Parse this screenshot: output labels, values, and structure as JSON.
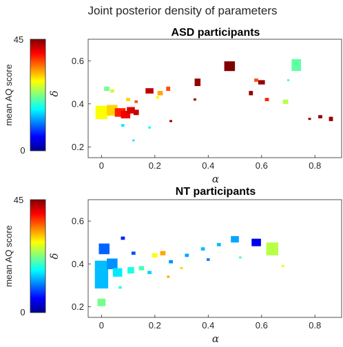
{
  "suptitle": "Joint posterior density of parameters",
  "chart_data": [
    {
      "type": "scatter",
      "title": "ASD participants",
      "xlabel": "α",
      "ylabel": "δ",
      "xlim": [
        -0.05,
        0.9
      ],
      "ylim": [
        0.15,
        0.7
      ],
      "xticks": [
        "0",
        "0.2",
        "0.4",
        "0.6",
        "0.8"
      ],
      "yticks": [
        "0.2",
        "0.4",
        "0.6"
      ],
      "colorbar": {
        "label": "mean AQ score",
        "min": "0",
        "max": "45",
        "colormap": "jet"
      },
      "points": [
        {
          "x": 0.0,
          "y": 0.36,
          "aq": 28,
          "w": 0.045,
          "h": 0.062
        },
        {
          "x": 0.04,
          "y": 0.37,
          "aq": 30,
          "w": 0.04,
          "h": 0.05
        },
        {
          "x": 0.07,
          "y": 0.36,
          "aq": 38,
          "w": 0.04,
          "h": 0.04
        },
        {
          "x": 0.09,
          "y": 0.35,
          "aq": 40,
          "w": 0.035,
          "h": 0.035
        },
        {
          "x": 0.11,
          "y": 0.37,
          "aq": 41,
          "w": 0.03,
          "h": 0.03
        },
        {
          "x": 0.13,
          "y": 0.36,
          "aq": 42,
          "w": 0.02,
          "h": 0.025
        },
        {
          "x": 0.02,
          "y": 0.47,
          "aq": 22,
          "w": 0.02,
          "h": 0.02
        },
        {
          "x": 0.04,
          "y": 0.46,
          "aq": 26,
          "w": 0.015,
          "h": 0.015
        },
        {
          "x": 0.1,
          "y": 0.42,
          "aq": 30,
          "w": 0.015,
          "h": 0.015
        },
        {
          "x": 0.13,
          "y": 0.41,
          "aq": 36,
          "w": 0.012,
          "h": 0.012
        },
        {
          "x": 0.18,
          "y": 0.46,
          "aq": 42,
          "w": 0.03,
          "h": 0.025
        },
        {
          "x": 0.22,
          "y": 0.45,
          "aq": 32,
          "w": 0.02,
          "h": 0.02
        },
        {
          "x": 0.25,
          "y": 0.47,
          "aq": 36,
          "w": 0.015,
          "h": 0.02
        },
        {
          "x": 0.21,
          "y": 0.43,
          "aq": 28,
          "w": 0.012,
          "h": 0.012
        },
        {
          "x": 0.36,
          "y": 0.5,
          "aq": 44,
          "w": 0.022,
          "h": 0.035
        },
        {
          "x": 0.48,
          "y": 0.575,
          "aq": 45,
          "w": 0.04,
          "h": 0.045
        },
        {
          "x": 0.6,
          "y": 0.5,
          "aq": 44,
          "w": 0.025,
          "h": 0.02
        },
        {
          "x": 0.58,
          "y": 0.51,
          "aq": 36,
          "w": 0.015,
          "h": 0.015
        },
        {
          "x": 0.56,
          "y": 0.45,
          "aq": 44,
          "w": 0.015,
          "h": 0.02
        },
        {
          "x": 0.62,
          "y": 0.42,
          "aq": 38,
          "w": 0.015,
          "h": 0.015
        },
        {
          "x": 0.69,
          "y": 0.41,
          "aq": 25,
          "w": 0.02,
          "h": 0.02
        },
        {
          "x": 0.73,
          "y": 0.58,
          "aq": 21,
          "w": 0.035,
          "h": 0.055
        },
        {
          "x": 0.82,
          "y": 0.34,
          "aq": 44,
          "w": 0.015,
          "h": 0.015
        },
        {
          "x": 0.86,
          "y": 0.33,
          "aq": 44,
          "w": 0.015,
          "h": 0.02
        },
        {
          "x": 0.78,
          "y": 0.33,
          "aq": 44,
          "w": 0.01,
          "h": 0.01
        },
        {
          "x": 0.26,
          "y": 0.32,
          "aq": 43,
          "w": 0.01,
          "h": 0.01
        },
        {
          "x": 0.18,
          "y": 0.29,
          "aq": 17,
          "w": 0.01,
          "h": 0.01
        },
        {
          "x": 0.08,
          "y": 0.3,
          "aq": 16,
          "w": 0.012,
          "h": 0.012
        },
        {
          "x": 0.12,
          "y": 0.23,
          "aq": 15,
          "w": 0.008,
          "h": 0.008
        },
        {
          "x": 0.35,
          "y": 0.42,
          "aq": 44,
          "w": 0.01,
          "h": 0.01
        },
        {
          "x": 0.7,
          "y": 0.51,
          "aq": 18,
          "w": 0.008,
          "h": 0.008
        }
      ]
    },
    {
      "type": "scatter",
      "title": "NT participants",
      "xlabel": "α",
      "ylabel": "δ",
      "xlim": [
        -0.05,
        0.9
      ],
      "ylim": [
        0.15,
        0.7
      ],
      "xticks": [
        "0",
        "0.2",
        "0.4",
        "0.6",
        "0.8"
      ],
      "yticks": [
        "0.2",
        "0.4",
        "0.6"
      ],
      "colorbar": {
        "label": "mean AQ score",
        "min": "0",
        "max": "45",
        "colormap": "jet"
      },
      "points": [
        {
          "x": 0.0,
          "y": 0.35,
          "aq": 14,
          "w": 0.05,
          "h": 0.13
        },
        {
          "x": 0.01,
          "y": 0.47,
          "aq": 10,
          "w": 0.04,
          "h": 0.05
        },
        {
          "x": 0.04,
          "y": 0.4,
          "aq": 12,
          "w": 0.04,
          "h": 0.05
        },
        {
          "x": 0.06,
          "y": 0.36,
          "aq": 16,
          "w": 0.035,
          "h": 0.04
        },
        {
          "x": 0.0,
          "y": 0.22,
          "aq": 22,
          "w": 0.03,
          "h": 0.035
        },
        {
          "x": 0.11,
          "y": 0.37,
          "aq": 18,
          "w": 0.025,
          "h": 0.03
        },
        {
          "x": 0.15,
          "y": 0.38,
          "aq": 20,
          "w": 0.02,
          "h": 0.02
        },
        {
          "x": 0.2,
          "y": 0.44,
          "aq": 28,
          "w": 0.02,
          "h": 0.02
        },
        {
          "x": 0.23,
          "y": 0.45,
          "aq": 32,
          "w": 0.02,
          "h": 0.02
        },
        {
          "x": 0.18,
          "y": 0.36,
          "aq": 15,
          "w": 0.015,
          "h": 0.015
        },
        {
          "x": 0.26,
          "y": 0.41,
          "aq": 12,
          "w": 0.015,
          "h": 0.015
        },
        {
          "x": 0.32,
          "y": 0.44,
          "aq": 13,
          "w": 0.015,
          "h": 0.015
        },
        {
          "x": 0.38,
          "y": 0.47,
          "aq": 14,
          "w": 0.015,
          "h": 0.015
        },
        {
          "x": 0.44,
          "y": 0.49,
          "aq": 14,
          "w": 0.015,
          "h": 0.015
        },
        {
          "x": 0.5,
          "y": 0.515,
          "aq": 13,
          "w": 0.03,
          "h": 0.03
        },
        {
          "x": 0.58,
          "y": 0.5,
          "aq": 5,
          "w": 0.035,
          "h": 0.035
        },
        {
          "x": 0.64,
          "y": 0.47,
          "aq": 25,
          "w": 0.045,
          "h": 0.06
        },
        {
          "x": 0.12,
          "y": 0.45,
          "aq": 9,
          "w": 0.015,
          "h": 0.015
        },
        {
          "x": 0.08,
          "y": 0.52,
          "aq": 7,
          "w": 0.015,
          "h": 0.015
        },
        {
          "x": 0.4,
          "y": 0.42,
          "aq": 11,
          "w": 0.012,
          "h": 0.012
        },
        {
          "x": 0.3,
          "y": 0.38,
          "aq": 30,
          "w": 0.01,
          "h": 0.01
        },
        {
          "x": 0.25,
          "y": 0.34,
          "aq": 32,
          "w": 0.01,
          "h": 0.01
        },
        {
          "x": 0.07,
          "y": 0.29,
          "aq": 19,
          "w": 0.012,
          "h": 0.012
        },
        {
          "x": 0.52,
          "y": 0.43,
          "aq": 21,
          "w": 0.01,
          "h": 0.01
        },
        {
          "x": 0.68,
          "y": 0.39,
          "aq": 27,
          "w": 0.01,
          "h": 0.01
        }
      ]
    }
  ]
}
